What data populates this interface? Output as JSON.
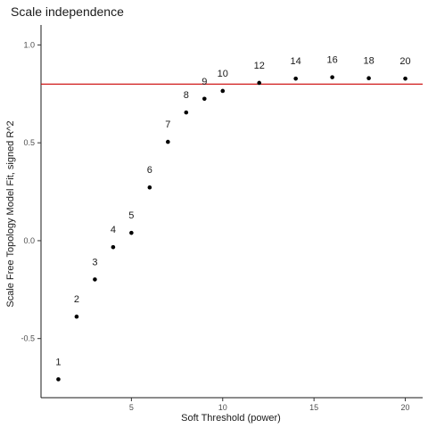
{
  "chart_data": {
    "type": "scatter",
    "title": "Scale independence",
    "xlabel": "Soft Threshold (power)",
    "ylabel": "Scale Free Topology Model Fit, signed R^2",
    "xlim": [
      0.05,
      20.95
    ],
    "ylim": [
      -0.802,
      1.102
    ],
    "xticks": [
      5,
      10,
      15,
      20
    ],
    "xtick_labels": [
      "5",
      "10",
      "15",
      "20"
    ],
    "yticks": [
      -0.5,
      0.0,
      0.5,
      1.0
    ],
    "ytick_labels": [
      "-0.5",
      "0.0",
      "0.5",
      "1.0"
    ],
    "grid": false,
    "reference_line": {
      "y": 0.8,
      "color": "#cc0000"
    },
    "point_color": "#000000",
    "points": [
      {
        "x": 1,
        "y": -0.708,
        "label": "1"
      },
      {
        "x": 2,
        "y": -0.388,
        "label": "2"
      },
      {
        "x": 3,
        "y": -0.198,
        "label": "3"
      },
      {
        "x": 4,
        "y": -0.033,
        "label": "4"
      },
      {
        "x": 5,
        "y": 0.04,
        "label": "5"
      },
      {
        "x": 6,
        "y": 0.272,
        "label": "6"
      },
      {
        "x": 7,
        "y": 0.505,
        "label": "7"
      },
      {
        "x": 8,
        "y": 0.655,
        "label": "8"
      },
      {
        "x": 9,
        "y": 0.725,
        "label": "9"
      },
      {
        "x": 10,
        "y": 0.765,
        "label": "10"
      },
      {
        "x": 12,
        "y": 0.806,
        "label": "12"
      },
      {
        "x": 14,
        "y": 0.828,
        "label": "14"
      },
      {
        "x": 16,
        "y": 0.835,
        "label": "16"
      },
      {
        "x": 18,
        "y": 0.83,
        "label": "18"
      },
      {
        "x": 20,
        "y": 0.828,
        "label": "20"
      }
    ]
  }
}
